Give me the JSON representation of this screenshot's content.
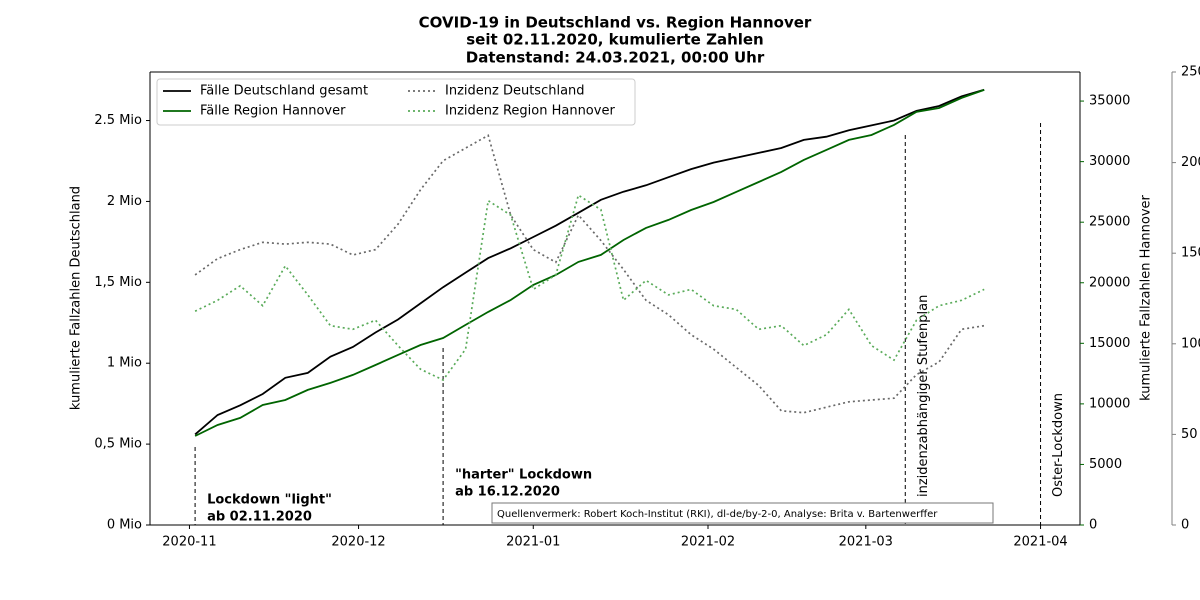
{
  "chart_data": {
    "type": "line",
    "title": [
      "COVID-19 in Deutschland vs. Region Hannover",
      "seit 02.11.2020, kumulierte Zahlen",
      "Datenstand: 24.03.2021, 00:00 Uhr"
    ],
    "ylabel": "kumulierte Fallzahlen Deutschland",
    "y2label": "kumulierte Fallzahlen Hannover",
    "source": "Quellenvermerk: Robert Koch-Institut (RKI), dl-de/by-2-0, Analyse: Brita v. Bartenwerffer",
    "x": [
      "2020-11-02",
      "2020-11-06",
      "2020-11-10",
      "2020-11-14",
      "2020-11-18",
      "2020-11-22",
      "2020-11-26",
      "2020-11-30",
      "2020-12-04",
      "2020-12-08",
      "2020-12-12",
      "2020-12-16",
      "2020-12-20",
      "2020-12-24",
      "2020-12-28",
      "2021-01-01",
      "2021-01-05",
      "2021-01-09",
      "2021-01-13",
      "2021-01-17",
      "2021-01-21",
      "2021-01-25",
      "2021-01-29",
      "2021-02-02",
      "2021-02-06",
      "2021-02-10",
      "2021-02-14",
      "2021-02-18",
      "2021-02-22",
      "2021-02-26",
      "2021-03-02",
      "2021-03-06",
      "2021-03-10",
      "2021-03-14",
      "2021-03-18",
      "2021-03-22"
    ],
    "xlim": [
      "2020-10-25",
      "2021-04-08"
    ],
    "xticks": [
      {
        "value": "2020-11-01",
        "label": "2020-11"
      },
      {
        "value": "2020-12-01",
        "label": "2020-12"
      },
      {
        "value": "2021-01-01",
        "label": "2021-01"
      },
      {
        "value": "2021-02-01",
        "label": "2021-02"
      },
      {
        "value": "2021-03-01",
        "label": "2021-03"
      },
      {
        "value": "2021-04-01",
        "label": "2021-04"
      }
    ],
    "ylim": [
      0,
      2800000
    ],
    "yticks": [
      {
        "value": 0,
        "label": "0 Mio"
      },
      {
        "value": 500000,
        "label": "0,5 Mio"
      },
      {
        "value": 1000000,
        "label": "1 Mio"
      },
      {
        "value": 1500000,
        "label": "1,5 Mio"
      },
      {
        "value": 2000000,
        "label": "2 Mio"
      },
      {
        "value": 2500000,
        "label": "2.5 Mio"
      }
    ],
    "y2lim": [
      0,
      37400
    ],
    "y2ticks": [
      0,
      5000,
      10000,
      15000,
      20000,
      25000,
      30000,
      35000
    ],
    "y2color": "#006400",
    "y3lim": [
      0,
      250
    ],
    "y3ticks": [
      0,
      50,
      100,
      150,
      200,
      250
    ],
    "y3color": "#808080",
    "legend": "upper left",
    "series": [
      {
        "name": "Fälle Deutschland gesamt",
        "color": "#000000",
        "style": "solid",
        "axis": "y",
        "values": [
          560000,
          680000,
          740000,
          810000,
          910000,
          940000,
          1040000,
          1100000,
          1190000,
          1270000,
          1370000,
          1470000,
          1560000,
          1650000,
          1710000,
          1780000,
          1850000,
          1930000,
          2010000,
          2060000,
          2100000,
          2150000,
          2200000,
          2240000,
          2270000,
          2300000,
          2330000,
          2380000,
          2400000,
          2440000,
          2470000,
          2500000,
          2560000,
          2590000,
          2650000,
          2690000
        ]
      },
      {
        "name": "Fälle Region Hannover",
        "color": "#006400",
        "style": "solid",
        "axis": "y2",
        "values": [
          7350,
          8260,
          8840,
          9910,
          10320,
          11150,
          11730,
          12390,
          13210,
          14040,
          14860,
          15440,
          16520,
          17590,
          18580,
          19820,
          20640,
          21720,
          22300,
          23530,
          24530,
          25190,
          26010,
          26670,
          27500,
          28320,
          29150,
          30140,
          30970,
          31790,
          32200,
          33030,
          34110,
          34430,
          35260,
          35920
        ]
      },
      {
        "name": "Inzidenz Deutschland",
        "color": "#696969",
        "style": "dotted",
        "axis": "y3",
        "values": [
          138,
          147,
          152,
          156,
          155,
          156,
          155,
          149,
          152,
          166,
          185,
          201,
          208,
          215,
          171,
          152,
          145,
          171,
          157,
          141,
          124,
          116,
          105,
          97,
          87,
          77,
          63,
          62,
          65,
          68,
          69,
          70,
          83,
          90,
          108,
          110
        ]
      },
      {
        "name": "Inzidenz Region Hannover",
        "color": "#5aab5a",
        "style": "dotted",
        "axis": "y3",
        "values": [
          118,
          124,
          132,
          121,
          143,
          127,
          110,
          108,
          113,
          99,
          86,
          80,
          97,
          179,
          171,
          130,
          138,
          182,
          174,
          124,
          135,
          127,
          130,
          121,
          119,
          108,
          110,
          99,
          105,
          119,
          99,
          91,
          113,
          121,
          124,
          130
        ]
      }
    ],
    "annotations": [
      {
        "x": "2020-11-02",
        "lines": [
          "Lockdown \"light\"",
          "ab 02.11.2020"
        ]
      },
      {
        "x": "2020-12-16",
        "lines": [
          "\"harter\" Lockdown",
          "ab 16.12.2020"
        ]
      },
      {
        "x": "2021-03-08",
        "lines": [
          "inzidenzabhängiger Stufenplan"
        ]
      },
      {
        "x": "2021-04-01",
        "lines": [
          "Oster-Lockdown"
        ]
      }
    ]
  }
}
